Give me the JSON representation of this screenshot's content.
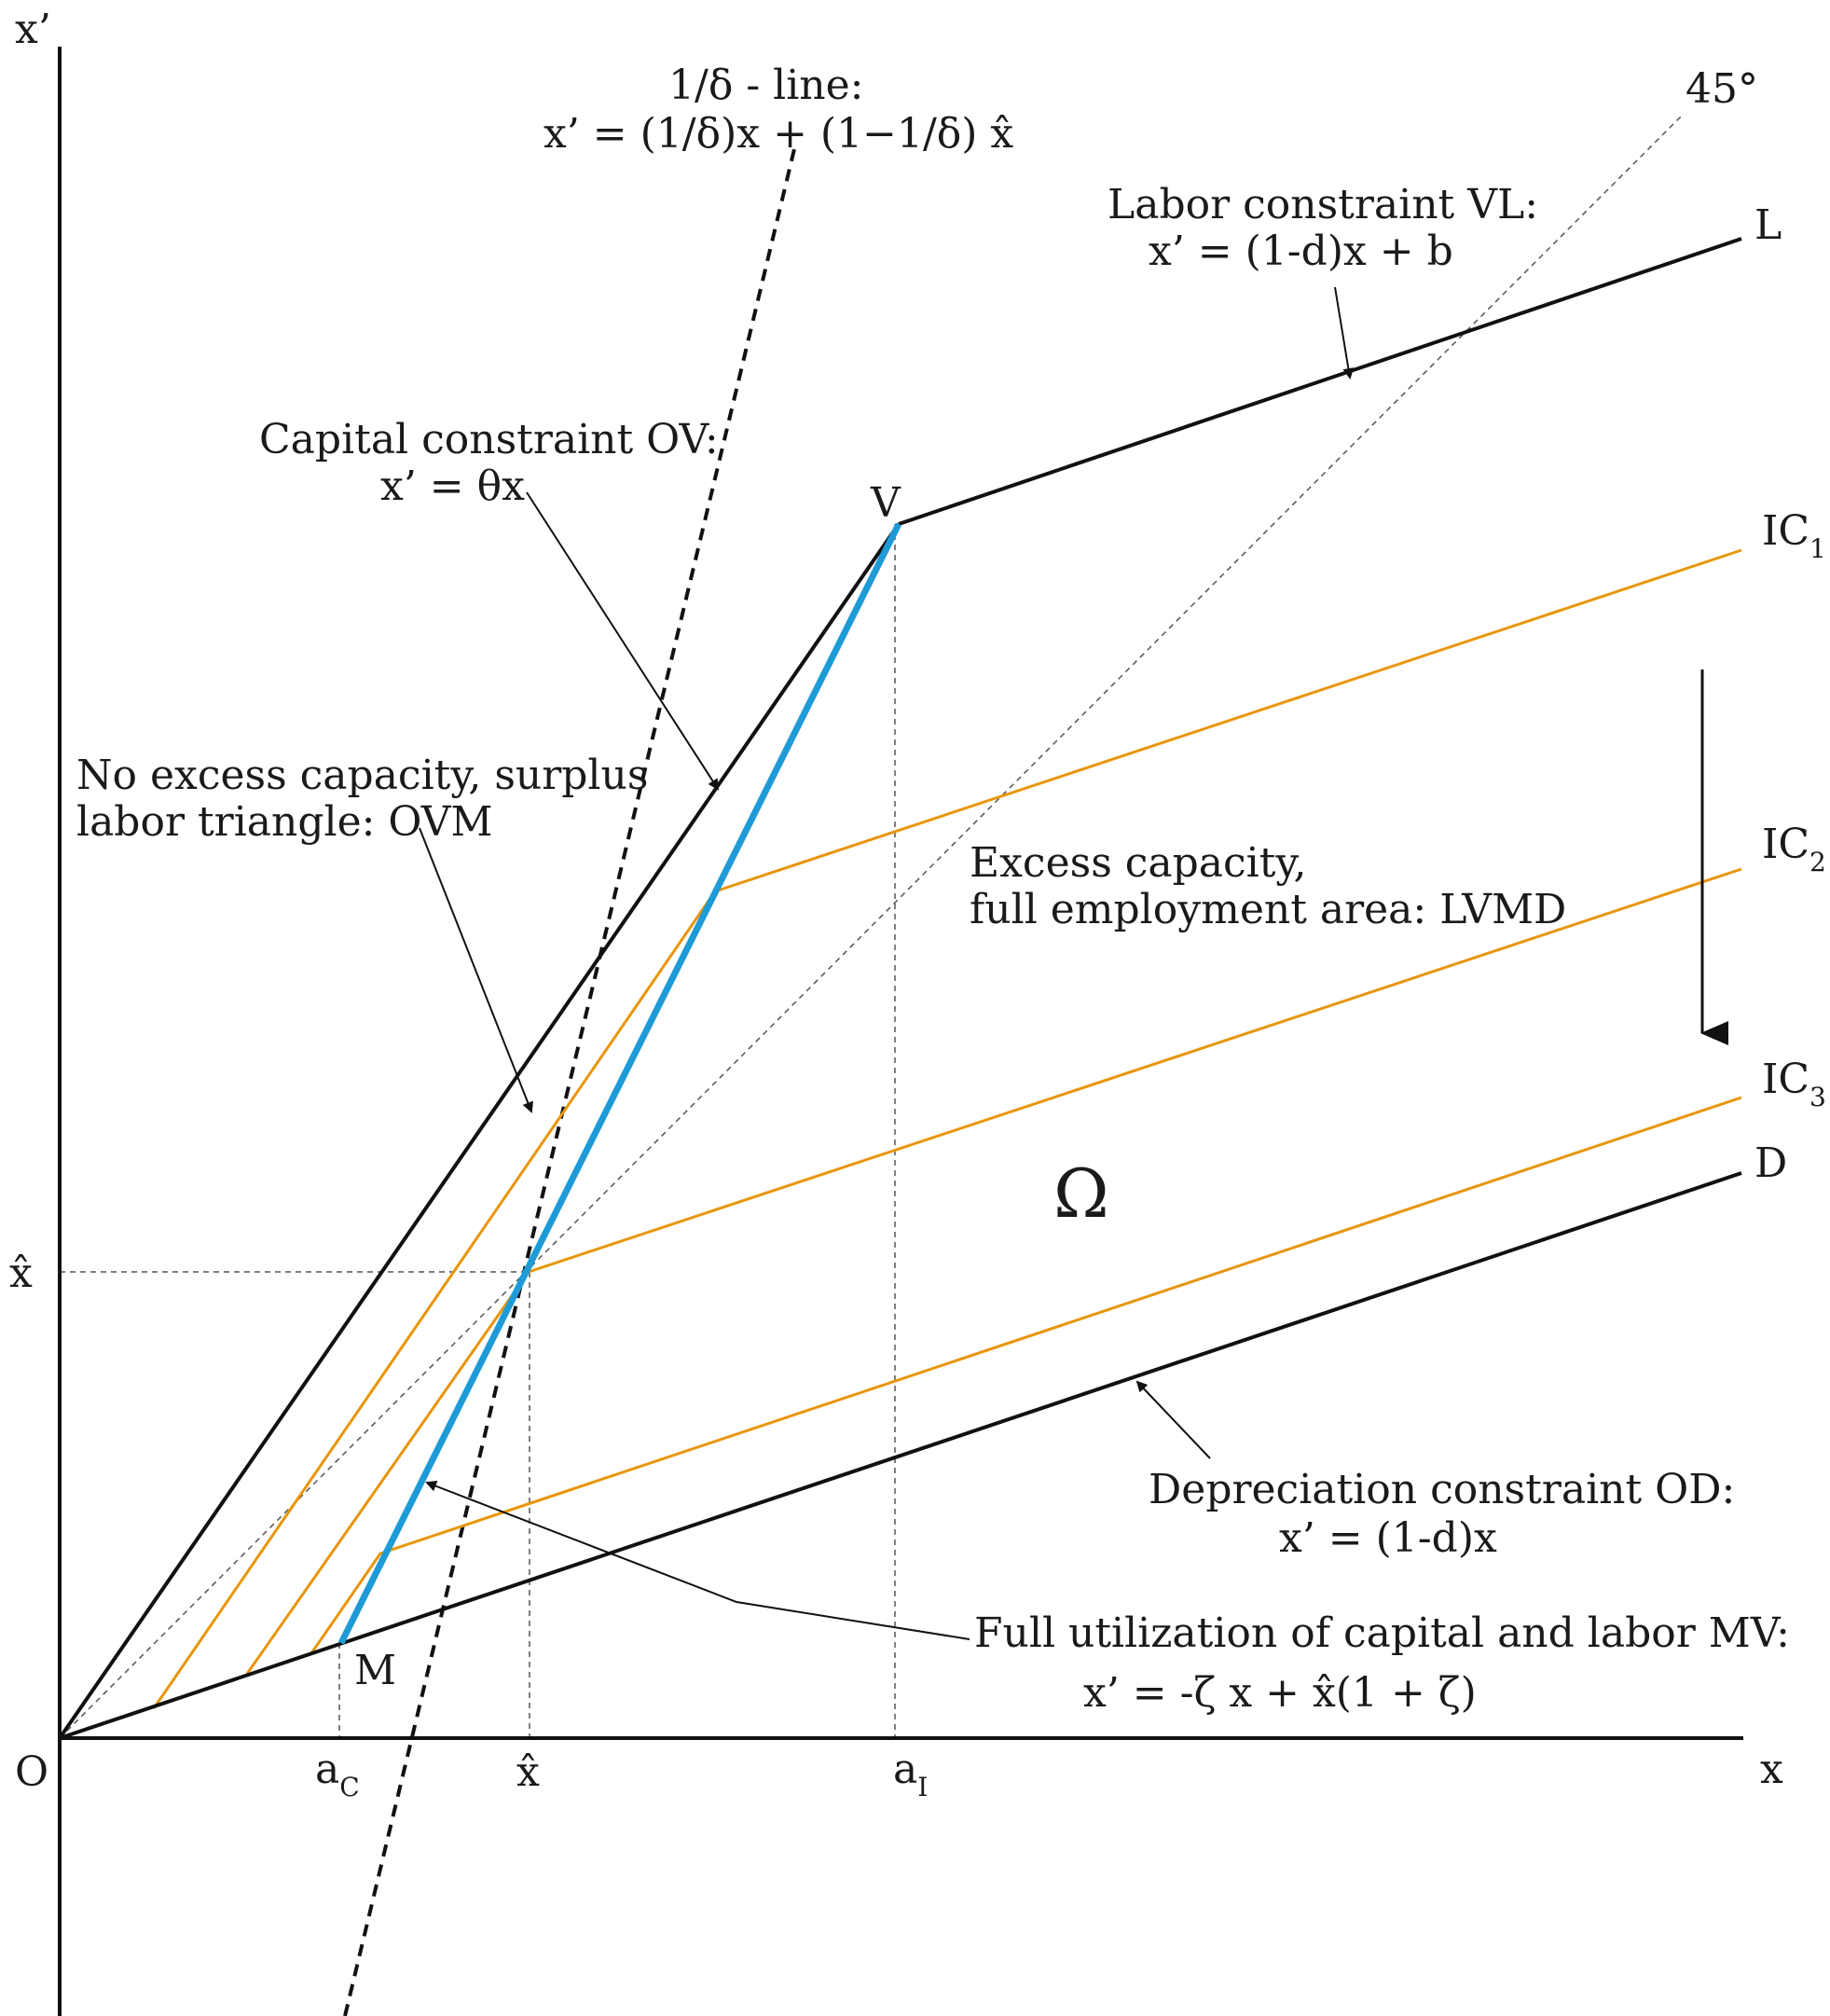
{
  "axes": {
    "y_label": "x’",
    "x_label": "x",
    "origin_label": "O"
  },
  "ticks": {
    "x_hat_y": "x̂",
    "a_c": "a",
    "a_c_sub": "C",
    "x_hat_x": "x̂",
    "a_i": "a",
    "a_i_sub": "I"
  },
  "points": {
    "V": "V",
    "M": "M",
    "L": "L",
    "D": "D",
    "omega": "Ω"
  },
  "curves": {
    "ic1": "IC",
    "ic1_sub": "1",
    "ic2": "IC",
    "ic2_sub": "2",
    "ic3": "IC",
    "ic3_sub": "3",
    "deg45": "45°"
  },
  "annotations": {
    "delta_line_title": "1/δ - line:",
    "delta_line_eq": "x’  = (1/δ)x + (1−1/δ) x̂",
    "labor_title": "Labor constraint VL:",
    "labor_eq": "x’  = (1-d)x + b",
    "capital_title": "Capital constraint OV:",
    "capital_eq": "x’  = θx",
    "noexcess_line1": "No excess capacity, surplus",
    "noexcess_line2": "labor triangle: OVM",
    "excess_line1": "Excess capacity,",
    "excess_line2": "full employment area: LVMD",
    "depr_title": "Depreciation constraint OD:",
    "depr_eq": "x’  = (1-d)x",
    "full_title": "Full utilization of capital and labor MV:",
    "full_eq": "x’  = -ζ x + x̂(1 + ζ)"
  },
  "colors": {
    "black": "#111111",
    "orange": "#e8960c",
    "blue": "#1e9bd7",
    "gray": "#555555"
  }
}
